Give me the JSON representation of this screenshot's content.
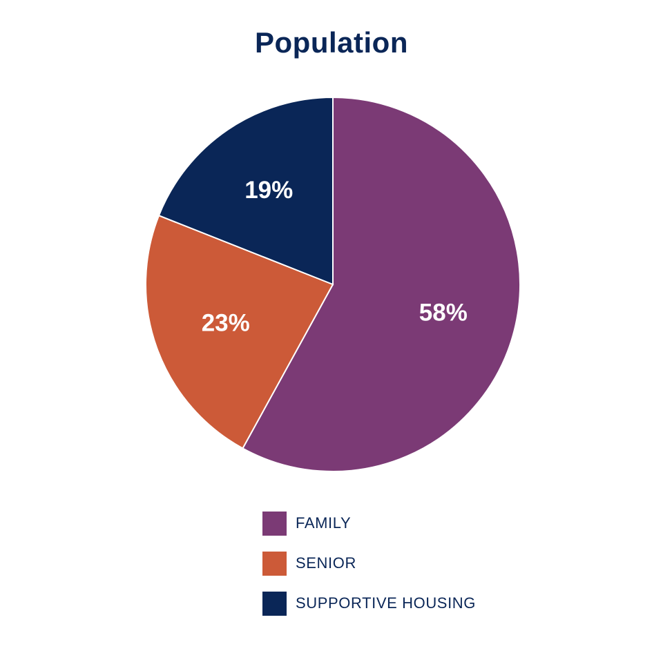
{
  "chart_data": {
    "type": "pie",
    "title": "Population",
    "categories": [
      "FAMILY",
      "SENIOR",
      "SUPPORTIVE HOUSING"
    ],
    "values": [
      58,
      23,
      19
    ],
    "value_labels": [
      "58%",
      "23%",
      "19%"
    ],
    "colors": [
      "#7b3a75",
      "#cc5a38",
      "#0a2657"
    ],
    "label_color": "#ffffff",
    "start_angle_deg": 0,
    "direction": "clockwise",
    "legend_position": "bottom"
  },
  "colors": {
    "title": "#0a2657",
    "legend_text": "#0a2657",
    "slice_border": "#ffffff"
  }
}
